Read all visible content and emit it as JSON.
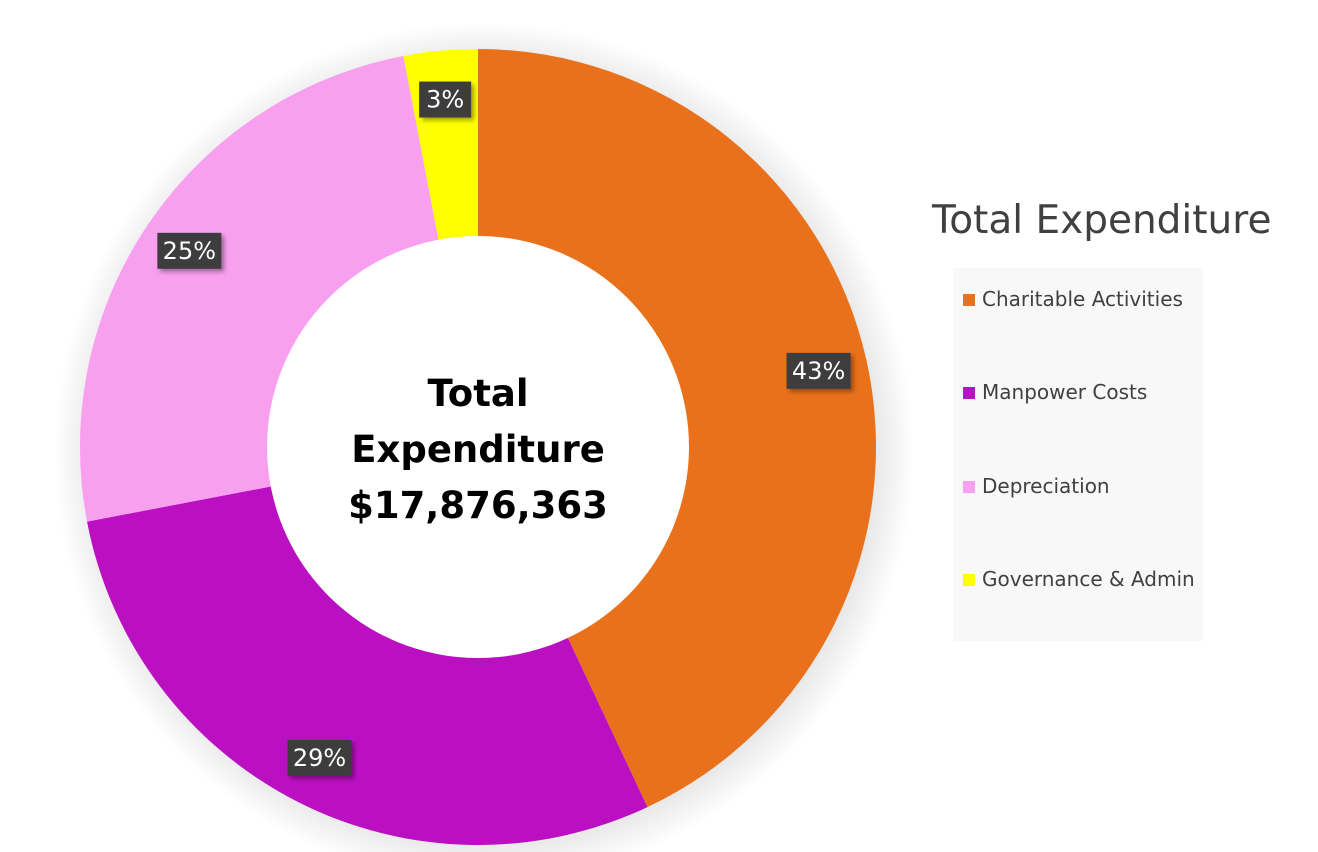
{
  "chart_data": {
    "type": "pie",
    "variant": "donut",
    "title": "Total Expenditure",
    "center_label": [
      "Total",
      "Expenditure",
      "$17,876,363"
    ],
    "categories": [
      "Charitable Activities",
      "Manpower Costs",
      "Depreciation",
      "Governance & Admin"
    ],
    "values": [
      43,
      29,
      25,
      3
    ],
    "data_labels": [
      "43%",
      "29%",
      "25%",
      "3%"
    ],
    "colors": [
      "#ea711b",
      "#bb0fc2",
      "#f99ff0",
      "#ffff00"
    ],
    "legend": {
      "title": "Total Expenditure",
      "position": "right"
    }
  }
}
